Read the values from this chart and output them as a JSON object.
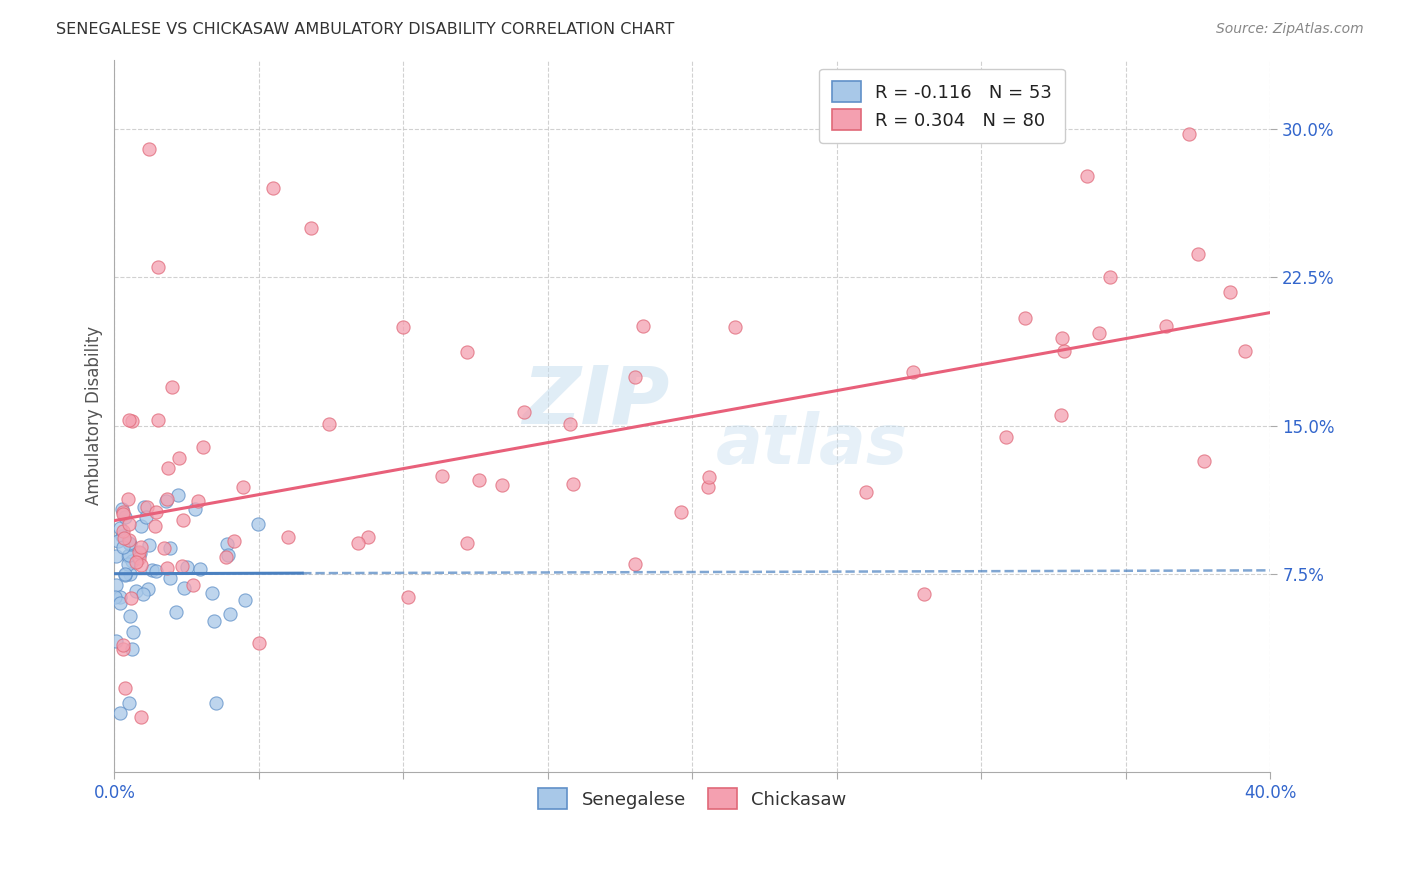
{
  "title": "SENEGALESE VS CHICKASAW AMBULATORY DISABILITY CORRELATION CHART",
  "source": "Source: ZipAtlas.com",
  "ylabel": "Ambulatory Disability",
  "yticks": [
    "7.5%",
    "15.0%",
    "22.5%",
    "30.0%"
  ],
  "ytick_vals": [
    0.075,
    0.15,
    0.225,
    0.3
  ],
  "xlim": [
    0.0,
    0.4
  ],
  "ylim": [
    -0.025,
    0.335
  ],
  "color_senegalese": "#a8c8e8",
  "color_chickasaw": "#f4a0b0",
  "color_senegalese_edge": "#6090c8",
  "color_chickasaw_edge": "#e06878",
  "color_senegalese_line": "#4a80c0",
  "color_chickasaw_line": "#e8607a",
  "background_color": "#ffffff",
  "watermark_zip": "ZIP",
  "watermark_atlas": "atlas",
  "legend_line1": "R = -0.116   N = 53",
  "legend_line2": "R = 0.304   N = 80",
  "legend_label1": "Senegalese",
  "legend_label2": "Chickasaw"
}
